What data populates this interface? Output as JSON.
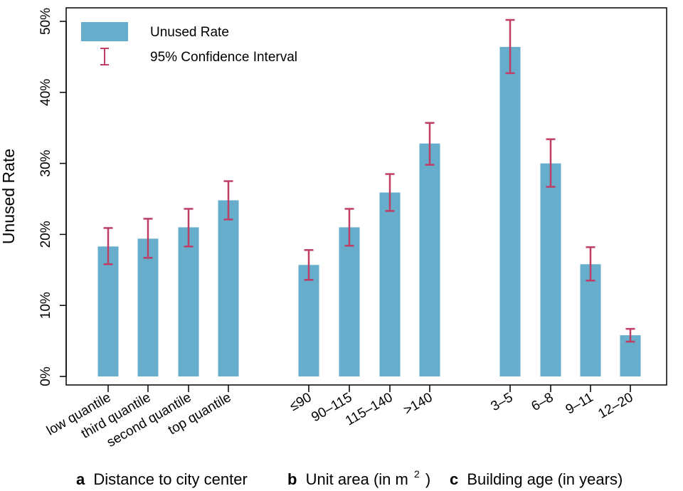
{
  "chart_data": {
    "type": "bar",
    "ylabel": "Unused Rate",
    "ylim": [
      0,
      50
    ],
    "yticks": [
      0,
      10,
      20,
      30,
      40,
      50
    ],
    "ytick_labels": [
      "0%",
      "10%",
      "20%",
      "30%",
      "40%",
      "50%"
    ],
    "legend": {
      "position": "top-left",
      "bar_label": "Unused Rate",
      "ci_label": "95% Confidence Interval"
    },
    "colors": {
      "bar": "#66aecb",
      "ci": "#c03d64"
    },
    "groups": [
      {
        "letter": "a",
        "caption": "Distance to city center",
        "categories": [
          "low quantile",
          "third quantile",
          "second quantile",
          "top quantile"
        ],
        "values": [
          18.3,
          19.4,
          21.0,
          24.8
        ],
        "ci_low": [
          15.8,
          16.7,
          18.3,
          22.1
        ],
        "ci_high": [
          20.9,
          22.2,
          23.6,
          27.5
        ]
      },
      {
        "letter": "b",
        "caption": "Unit area (in m",
        "caption_sup": "2",
        "caption_end": ")",
        "categories": [
          "≤90",
          "90–115",
          "115–140",
          ">140"
        ],
        "values": [
          15.7,
          21.0,
          25.9,
          32.8
        ],
        "ci_low": [
          13.6,
          18.4,
          23.3,
          29.8
        ],
        "ci_high": [
          17.8,
          23.6,
          28.5,
          35.7
        ]
      },
      {
        "letter": "c",
        "caption": "Building age (in years)",
        "categories": [
          "3–5",
          "6–8",
          "9–11",
          "12–20"
        ],
        "values": [
          46.4,
          30.0,
          15.8,
          5.8
        ],
        "ci_low": [
          42.7,
          26.7,
          13.5,
          4.9
        ],
        "ci_high": [
          50.2,
          33.4,
          18.2,
          6.7
        ]
      }
    ]
  }
}
